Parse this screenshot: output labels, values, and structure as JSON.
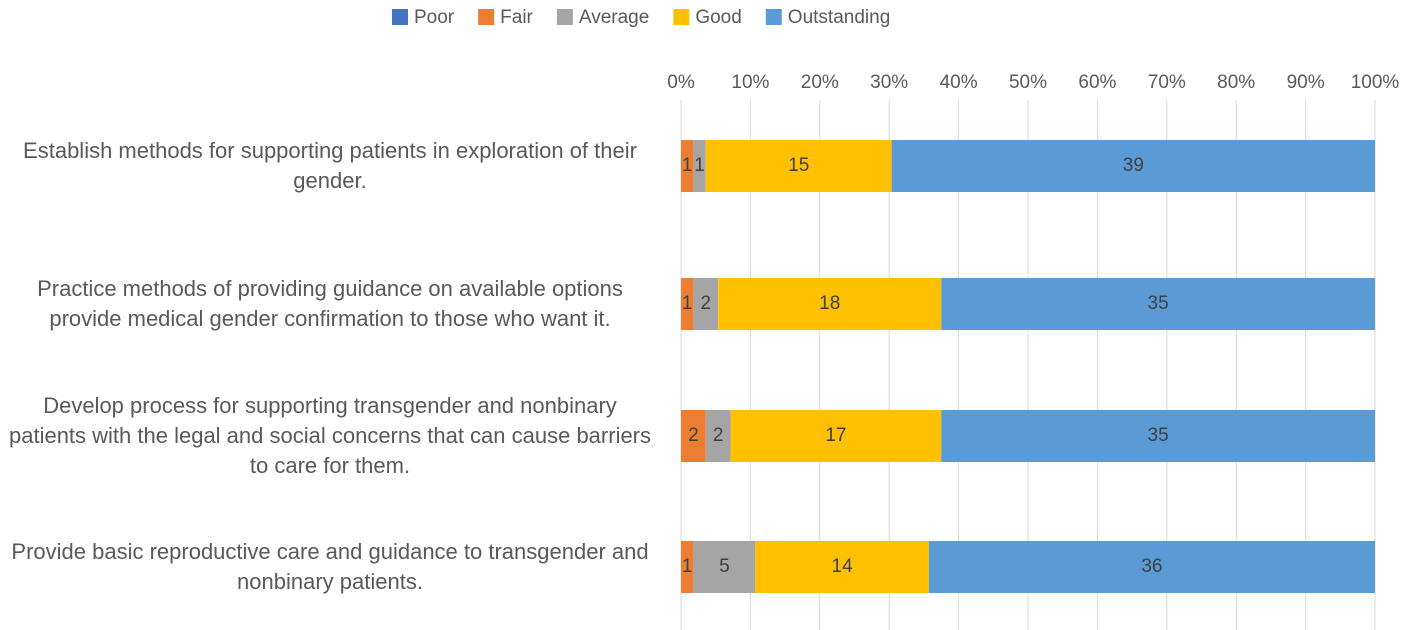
{
  "chart_data": {
    "type": "bar",
    "orientation": "horizontal",
    "stacked": "percent",
    "categories": [
      "Establish methods for supporting patients in exploration of their gender.",
      "Practice methods of providing guidance on available options provide medical gender confirmation to those who want it.",
      "Develop process for supporting transgender and nonbinary patients with the legal and social concerns that can cause barriers to care for them.",
      "Provide basic reproductive care and guidance to transgender and nonbinary patients."
    ],
    "series": [
      {
        "name": "Poor",
        "color": "#4472c4",
        "values": [
          0,
          0,
          0,
          0
        ]
      },
      {
        "name": "Fair",
        "color": "#ed7d31",
        "values": [
          1,
          1,
          2,
          1
        ]
      },
      {
        "name": "Average",
        "color": "#a5a5a5",
        "values": [
          1,
          2,
          2,
          5
        ]
      },
      {
        "name": "Good",
        "color": "#ffc000",
        "values": [
          15,
          18,
          17,
          14
        ]
      },
      {
        "name": "Outstanding",
        "color": "#5b9bd5",
        "values": [
          39,
          35,
          35,
          36
        ]
      }
    ],
    "xlim": [
      0,
      100
    ],
    "xticks": [
      {
        "value": 0,
        "label": "0%"
      },
      {
        "value": 10,
        "label": "10%"
      },
      {
        "value": 20,
        "label": "20%"
      },
      {
        "value": 30,
        "label": "30%"
      },
      {
        "value": 40,
        "label": "40%"
      },
      {
        "value": 50,
        "label": "50%"
      },
      {
        "value": 60,
        "label": "60%"
      },
      {
        "value": 70,
        "label": "70%"
      },
      {
        "value": 80,
        "label": "80%"
      },
      {
        "value": 90,
        "label": "90%"
      },
      {
        "value": 100,
        "label": "100%"
      }
    ],
    "grid": true,
    "legend": "top"
  }
}
